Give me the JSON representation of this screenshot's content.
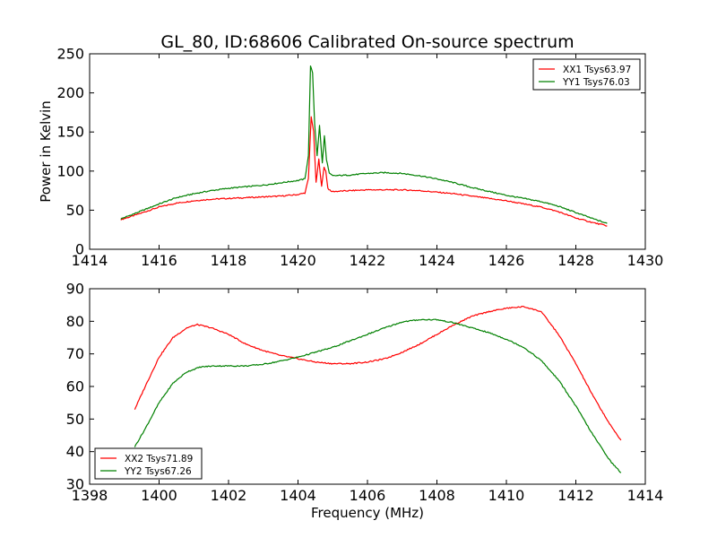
{
  "figure": {
    "title": "GL_80, ID:68606 Calibrated On-source spectrum",
    "colors": {
      "red": "#ff0000",
      "green": "#008000",
      "axes": "#000000",
      "background": "#ffffff"
    }
  },
  "chart_data": [
    {
      "type": "line",
      "title": "GL_80, ID:68606 Calibrated On-source spectrum",
      "xlabel": "",
      "ylabel": "Power in Kelvin",
      "xlim": [
        1414,
        1430
      ],
      "ylim": [
        0,
        250
      ],
      "xticks": [
        1414,
        1416,
        1418,
        1420,
        1422,
        1424,
        1426,
        1428,
        1430
      ],
      "yticks": [
        0,
        50,
        100,
        150,
        200,
        250
      ],
      "grid": false,
      "legend_position": "top-right",
      "series": [
        {
          "name": "XX1 Tsys63.97",
          "color": "#ff0000",
          "x": [
            1414.9,
            1415.2,
            1415.6,
            1416.0,
            1416.5,
            1417.0,
            1417.5,
            1418.0,
            1418.5,
            1419.0,
            1419.5,
            1420.0,
            1420.2,
            1420.3,
            1420.38,
            1420.45,
            1420.52,
            1420.6,
            1420.68,
            1420.75,
            1420.8,
            1420.86,
            1420.95,
            1421.1,
            1421.5,
            1422.0,
            1422.5,
            1423.0,
            1423.5,
            1424.0,
            1424.5,
            1425.0,
            1425.5,
            1426.0,
            1426.5,
            1427.0,
            1427.5,
            1428.0,
            1428.5,
            1428.9
          ],
          "y": [
            38,
            42,
            48,
            54,
            59,
            62,
            64,
            65,
            66,
            67,
            68,
            70,
            72,
            90,
            170,
            150,
            85,
            115,
            80,
            105,
            100,
            78,
            74,
            74,
            75,
            76,
            76,
            76,
            75,
            73,
            71,
            68,
            65,
            62,
            58,
            54,
            48,
            40,
            34,
            30
          ]
        },
        {
          "name": "YY1 Tsys76.03",
          "color": "#008000",
          "x": [
            1414.9,
            1415.2,
            1415.6,
            1416.0,
            1416.5,
            1417.0,
            1417.5,
            1418.0,
            1418.5,
            1419.0,
            1419.5,
            1420.0,
            1420.2,
            1420.3,
            1420.36,
            1420.42,
            1420.48,
            1420.55,
            1420.62,
            1420.7,
            1420.76,
            1420.82,
            1420.9,
            1421.0,
            1421.5,
            1422.0,
            1422.5,
            1423.0,
            1423.5,
            1424.0,
            1424.5,
            1425.0,
            1425.5,
            1426.0,
            1426.5,
            1427.0,
            1427.5,
            1428.0,
            1428.5,
            1428.9
          ],
          "y": [
            39,
            44,
            51,
            58,
            66,
            71,
            75,
            78,
            80,
            82,
            85,
            88,
            90,
            120,
            235,
            225,
            160,
            120,
            158,
            110,
            145,
            115,
            97,
            94,
            95,
            97,
            98,
            97,
            94,
            90,
            85,
            79,
            74,
            69,
            65,
            61,
            55,
            47,
            39,
            33
          ]
        }
      ]
    },
    {
      "type": "line",
      "title": "",
      "xlabel": "Frequency (MHz)",
      "ylabel": "",
      "xlim": [
        1398,
        1414
      ],
      "ylim": [
        30,
        90
      ],
      "xticks": [
        1398,
        1400,
        1402,
        1404,
        1406,
        1408,
        1410,
        1412,
        1414
      ],
      "yticks": [
        30,
        40,
        50,
        60,
        70,
        80,
        90
      ],
      "grid": false,
      "legend_position": "bottom-left",
      "series": [
        {
          "name": "XX2 Tsys71.89",
          "color": "#ff0000",
          "x": [
            1399.3,
            1399.6,
            1400.0,
            1400.4,
            1400.8,
            1401.1,
            1401.5,
            1402.0,
            1402.5,
            1403.0,
            1403.5,
            1404.0,
            1404.5,
            1405.0,
            1405.5,
            1406.0,
            1406.5,
            1407.0,
            1407.5,
            1408.0,
            1408.5,
            1409.0,
            1409.5,
            1410.0,
            1410.5,
            1411.0,
            1411.5,
            1412.0,
            1412.5,
            1413.0,
            1413.3
          ],
          "y": [
            53,
            60,
            69,
            75,
            78,
            79,
            78,
            76,
            73,
            71,
            69.5,
            68.5,
            67.5,
            67,
            67,
            67.5,
            68.5,
            70.5,
            73,
            76,
            79,
            81.5,
            83,
            84,
            84.5,
            83,
            76,
            67,
            57,
            48,
            43.5
          ]
        },
        {
          "name": "YY2 Tsys67.26",
          "color": "#008000",
          "x": [
            1399.3,
            1399.6,
            1400.0,
            1400.4,
            1400.8,
            1401.2,
            1401.6,
            1402.0,
            1402.5,
            1403.0,
            1403.5,
            1404.0,
            1404.5,
            1405.0,
            1405.5,
            1406.0,
            1406.5,
            1407.0,
            1407.5,
            1408.0,
            1408.5,
            1409.0,
            1409.5,
            1410.0,
            1410.5,
            1411.0,
            1411.5,
            1412.0,
            1412.5,
            1413.0,
            1413.3
          ],
          "y": [
            41.5,
            47,
            55,
            61,
            64.5,
            66,
            66.3,
            66.3,
            66.3,
            66.8,
            67.8,
            69,
            70.5,
            72,
            74,
            76,
            78,
            79.8,
            80.5,
            80.5,
            79.5,
            78,
            76.5,
            74.5,
            72,
            68,
            62,
            54,
            45,
            37,
            33.5
          ]
        }
      ]
    }
  ]
}
